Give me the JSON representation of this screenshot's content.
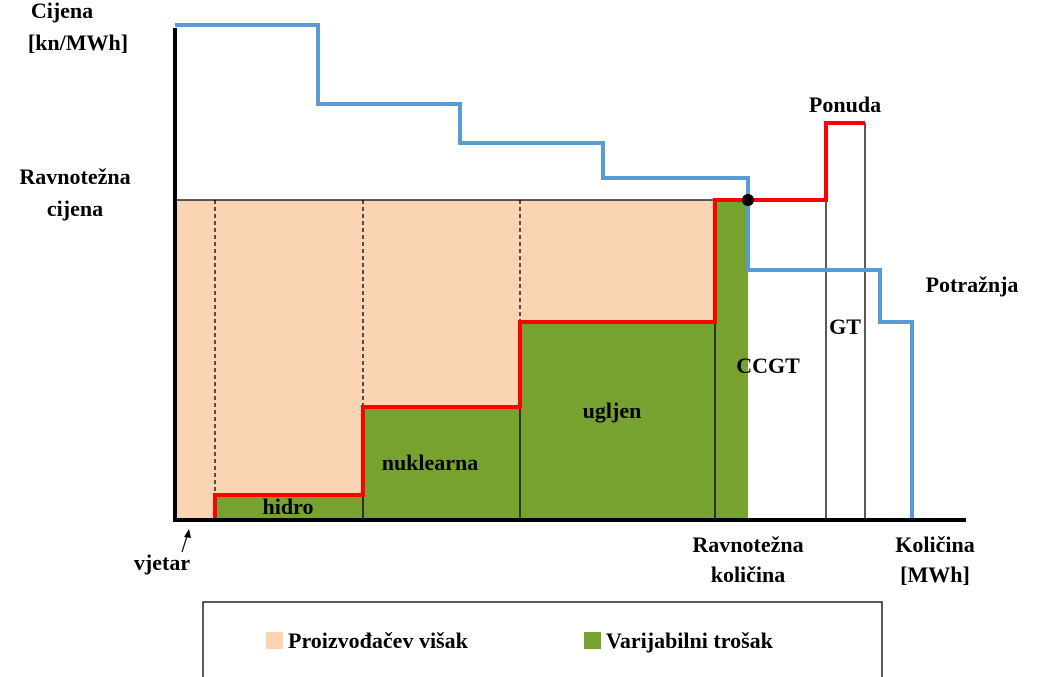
{
  "axes": {
    "y_label": [
      "Cijena",
      "[kn/MWh]"
    ],
    "x_label": [
      "Količina",
      "[MWh]"
    ]
  },
  "equilibrium": {
    "price": [
      "Ravnotežna",
      "cijena"
    ],
    "quantity": [
      "Ravnotežna",
      "količina"
    ]
  },
  "curves": {
    "supply": "Ponuda",
    "demand": "Potražnja"
  },
  "plants": {
    "wind": "vjetar",
    "hydro": "hidro",
    "nuclear": "nuklearna",
    "coal": "ugljen",
    "ccgt": "CCGT",
    "gt": "GT"
  },
  "legend": [
    {
      "name": "Proizvođačev višak",
      "color": "#fbd4b4"
    },
    {
      "name": "Varijabilni trošak",
      "color": "#77a22f"
    }
  ]
}
